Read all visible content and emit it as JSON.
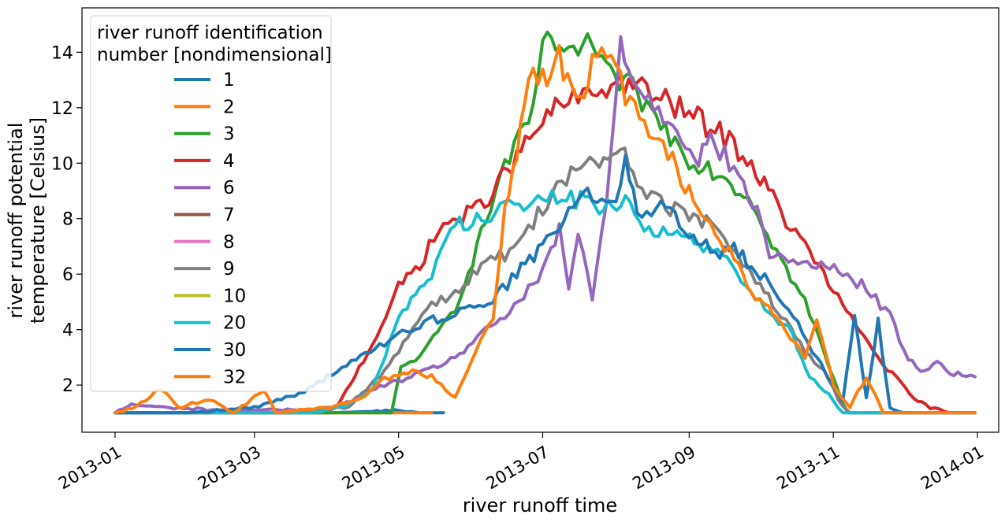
{
  "chart_data": {
    "type": "line",
    "title": "",
    "xlabel": "river runoff time",
    "ylabel_lines": [
      "river runoff potential",
      "temperature [Celsius]"
    ],
    "x_ticks": [
      "2013-01",
      "2013-03",
      "2013-05",
      "2013-07",
      "2013-09",
      "2013-11",
      "2014-01"
    ],
    "y_ticks": [
      "2",
      "4",
      "6",
      "8",
      "10",
      "12",
      "14"
    ],
    "xlim": [
      "2012-12-18",
      "2014-01-10"
    ],
    "ylim": [
      0.3,
      15.6
    ],
    "grid": false,
    "legend": {
      "title_lines": [
        "river runoff identification",
        "number [nondimensional]"
      ],
      "placement": "upper-left"
    },
    "series": [
      {
        "name": "1",
        "color": "#1f77b4",
        "points": [
          [
            "2013-01-01",
            1.0
          ],
          [
            "2013-01-20",
            1.0
          ],
          [
            "2013-02-01",
            1.0
          ],
          [
            "2013-03-01",
            1.0
          ],
          [
            "2013-04-01",
            1.0
          ],
          [
            "2013-04-20",
            1.05
          ],
          [
            "2013-05-01",
            1.1
          ],
          [
            "2013-05-10",
            1.0
          ],
          [
            "2013-05-20",
            1.0
          ]
        ]
      },
      {
        "name": "2",
        "color": "#ff7f0e",
        "points": [
          [
            "2013-01-01",
            1.0
          ],
          [
            "2013-02-01",
            1.0
          ],
          [
            "2013-03-01",
            1.0
          ],
          [
            "2013-04-01",
            1.0
          ],
          [
            "2013-05-01",
            1.0
          ],
          [
            "2013-05-15",
            1.0
          ]
        ]
      },
      {
        "name": "3",
        "color": "#2ca02c",
        "points": [
          [
            "2013-01-01",
            1.0
          ],
          [
            "2013-04-28",
            1.0
          ],
          [
            "2013-05-02",
            2.6
          ],
          [
            "2013-05-12",
            3.2
          ],
          [
            "2013-05-25",
            4.8
          ],
          [
            "2013-06-05",
            7.4
          ],
          [
            "2013-06-15",
            10.0
          ],
          [
            "2013-06-25",
            11.3
          ],
          [
            "2013-07-03",
            14.9
          ],
          [
            "2013-07-10",
            13.6
          ],
          [
            "2013-07-20",
            14.5
          ],
          [
            "2013-07-28",
            13.2
          ],
          [
            "2013-08-08",
            12.7
          ],
          [
            "2013-08-20",
            11.4
          ],
          [
            "2013-09-01",
            10.2
          ],
          [
            "2013-09-15",
            9.6
          ],
          [
            "2013-09-28",
            8.6
          ],
          [
            "2013-10-10",
            6.5
          ],
          [
            "2013-10-20",
            5.0
          ],
          [
            "2013-10-28",
            3.2
          ],
          [
            "2013-11-05",
            1.3
          ],
          [
            "2013-11-08",
            1.0
          ],
          [
            "2013-12-31",
            1.0
          ]
        ]
      },
      {
        "name": "4",
        "color": "#d62728",
        "points": [
          [
            "2013-01-01",
            1.0
          ],
          [
            "2013-03-20",
            1.0
          ],
          [
            "2013-04-05",
            1.2
          ],
          [
            "2013-04-20",
            3.5
          ],
          [
            "2013-05-01",
            5.5
          ],
          [
            "2013-05-10",
            6.4
          ],
          [
            "2013-05-20",
            7.8
          ],
          [
            "2013-06-01",
            8.2
          ],
          [
            "2013-06-10",
            9.0
          ],
          [
            "2013-06-20",
            10.2
          ],
          [
            "2013-07-01",
            11.5
          ],
          [
            "2013-07-10",
            12.2
          ],
          [
            "2013-07-20",
            12.4
          ],
          [
            "2013-08-01",
            12.9
          ],
          [
            "2013-08-10",
            12.8
          ],
          [
            "2013-08-20",
            12.3
          ],
          [
            "2013-09-01",
            11.8
          ],
          [
            "2013-09-10",
            11.3
          ],
          [
            "2013-09-20",
            10.7
          ],
          [
            "2013-10-01",
            9.5
          ],
          [
            "2013-10-10",
            8.2
          ],
          [
            "2013-10-20",
            7.0
          ],
          [
            "2013-10-28",
            6.0
          ],
          [
            "2013-11-05",
            4.8
          ],
          [
            "2013-11-12",
            4.0
          ],
          [
            "2013-11-20",
            3.0
          ],
          [
            "2013-11-28",
            2.2
          ],
          [
            "2013-12-05",
            1.5
          ],
          [
            "2013-12-12",
            1.2
          ],
          [
            "2013-12-20",
            1.0
          ],
          [
            "2013-12-31",
            1.0
          ]
        ]
      },
      {
        "name": "6",
        "color": "#9467bd",
        "points": [
          [
            "2013-01-01",
            1.0
          ],
          [
            "2013-01-08",
            1.3
          ],
          [
            "2013-01-20",
            1.2
          ],
          [
            "2013-02-15",
            1.1
          ],
          [
            "2013-03-15",
            1.1
          ],
          [
            "2013-04-05",
            1.2
          ],
          [
            "2013-04-25",
            2.0
          ],
          [
            "2013-05-10",
            2.4
          ],
          [
            "2013-05-25",
            3.0
          ],
          [
            "2013-06-05",
            3.8
          ],
          [
            "2013-06-15",
            4.5
          ],
          [
            "2013-06-25",
            5.4
          ],
          [
            "2013-07-01",
            6.0
          ],
          [
            "2013-07-08",
            7.6
          ],
          [
            "2013-07-12",
            5.5
          ],
          [
            "2013-07-16",
            7.5
          ],
          [
            "2013-07-22",
            5.1
          ],
          [
            "2013-07-28",
            8.5
          ],
          [
            "2013-08-03",
            14.5
          ],
          [
            "2013-08-08",
            13.0
          ],
          [
            "2013-08-15",
            12.3
          ],
          [
            "2013-08-25",
            11.5
          ],
          [
            "2013-09-05",
            10.2
          ],
          [
            "2013-09-10",
            10.9
          ],
          [
            "2013-09-18",
            10.0
          ],
          [
            "2013-09-28",
            8.6
          ],
          [
            "2013-10-05",
            6.8
          ],
          [
            "2013-10-15",
            6.4
          ],
          [
            "2013-10-25",
            6.4
          ],
          [
            "2013-11-05",
            6.0
          ],
          [
            "2013-11-15",
            5.5
          ],
          [
            "2013-11-25",
            4.5
          ],
          [
            "2013-12-01",
            3.2
          ],
          [
            "2013-12-08",
            2.5
          ],
          [
            "2013-12-15",
            2.8
          ],
          [
            "2013-12-22",
            2.4
          ],
          [
            "2013-12-31",
            2.3
          ]
        ]
      },
      {
        "name": "7",
        "color": "#8c564b",
        "points": []
      },
      {
        "name": "8",
        "color": "#e377c2",
        "points": []
      },
      {
        "name": "9",
        "color": "#7f7f7f",
        "points": [
          [
            "2013-01-01",
            1.0
          ],
          [
            "2013-03-20",
            1.0
          ],
          [
            "2013-04-10",
            1.2
          ],
          [
            "2013-04-25",
            2.5
          ],
          [
            "2013-05-05",
            3.8
          ],
          [
            "2013-05-15",
            5.0
          ],
          [
            "2013-05-25",
            5.3
          ],
          [
            "2013-06-05",
            6.3
          ],
          [
            "2013-06-15",
            6.7
          ],
          [
            "2013-06-25",
            7.6
          ],
          [
            "2013-07-05",
            9.0
          ],
          [
            "2013-07-15",
            9.8
          ],
          [
            "2013-07-25",
            10.0
          ],
          [
            "2013-08-03",
            10.5
          ],
          [
            "2013-08-10",
            9.4
          ],
          [
            "2013-08-20",
            8.5
          ],
          [
            "2013-09-01",
            8.2
          ],
          [
            "2013-09-10",
            7.7
          ],
          [
            "2013-09-20",
            7.0
          ],
          [
            "2013-10-01",
            5.5
          ],
          [
            "2013-10-10",
            4.5
          ],
          [
            "2013-10-20",
            3.2
          ],
          [
            "2013-10-28",
            2.5
          ],
          [
            "2013-11-05",
            1.2
          ],
          [
            "2013-11-08",
            1.0
          ],
          [
            "2013-12-31",
            1.0
          ]
        ]
      },
      {
        "name": "10",
        "color": "#bcbd22",
        "points": []
      },
      {
        "name": "20",
        "color": "#17becf",
        "points": [
          [
            "2013-01-01",
            1.0
          ],
          [
            "2013-03-25",
            1.0
          ],
          [
            "2013-04-10",
            1.3
          ],
          [
            "2013-04-20",
            1.8
          ],
          [
            "2013-05-01",
            4.5
          ],
          [
            "2013-05-10",
            5.5
          ],
          [
            "2013-05-15",
            6.0
          ],
          [
            "2013-05-25",
            7.8
          ],
          [
            "2013-06-05",
            8.0
          ],
          [
            "2013-06-15",
            8.6
          ],
          [
            "2013-06-25",
            8.4
          ],
          [
            "2013-07-05",
            8.8
          ],
          [
            "2013-07-15",
            8.7
          ],
          [
            "2013-07-25",
            8.5
          ],
          [
            "2013-08-05",
            8.5
          ],
          [
            "2013-08-15",
            7.6
          ],
          [
            "2013-08-25",
            7.6
          ],
          [
            "2013-09-05",
            7.0
          ],
          [
            "2013-09-15",
            6.7
          ],
          [
            "2013-09-25",
            5.5
          ],
          [
            "2013-10-05",
            4.7
          ],
          [
            "2013-10-15",
            3.8
          ],
          [
            "2013-10-22",
            2.3
          ],
          [
            "2013-10-30",
            1.7
          ],
          [
            "2013-11-05",
            1.0
          ],
          [
            "2013-12-31",
            1.0
          ]
        ]
      },
      {
        "name": "30",
        "color": "#1f77b4",
        "points": [
          [
            "2013-01-01",
            1.0
          ],
          [
            "2013-02-01",
            1.0
          ],
          [
            "2013-03-01",
            1.2
          ],
          [
            "2013-03-20",
            1.7
          ],
          [
            "2013-04-01",
            2.3
          ],
          [
            "2013-04-15",
            3.0
          ],
          [
            "2013-04-25",
            3.5
          ],
          [
            "2013-05-10",
            4.2
          ],
          [
            "2013-05-25",
            4.6
          ],
          [
            "2013-06-10",
            5.1
          ],
          [
            "2013-06-20",
            6.0
          ],
          [
            "2013-07-01",
            7.0
          ],
          [
            "2013-07-10",
            8.0
          ],
          [
            "2013-07-20",
            9.0
          ],
          [
            "2013-08-01",
            8.7
          ],
          [
            "2013-08-05",
            9.9
          ],
          [
            "2013-08-10",
            8.3
          ],
          [
            "2013-08-20",
            8.5
          ],
          [
            "2013-09-01",
            7.6
          ],
          [
            "2013-09-10",
            6.8
          ],
          [
            "2013-09-20",
            6.9
          ],
          [
            "2013-10-01",
            6.0
          ],
          [
            "2013-10-15",
            4.5
          ],
          [
            "2013-10-25",
            3.0
          ],
          [
            "2013-11-01",
            2.0
          ],
          [
            "2013-11-05",
            1.4
          ],
          [
            "2013-11-10",
            4.5
          ],
          [
            "2013-11-15",
            1.5
          ],
          [
            "2013-11-20",
            4.3
          ],
          [
            "2013-11-25",
            1.2
          ],
          [
            "2013-12-01",
            1.0
          ],
          [
            "2013-12-31",
            1.0
          ]
        ]
      },
      {
        "name": "32",
        "color": "#ff7f0e",
        "points": [
          [
            "2013-01-01",
            1.0
          ],
          [
            "2013-01-10",
            1.2
          ],
          [
            "2013-01-20",
            1.9
          ],
          [
            "2013-01-28",
            1.2
          ],
          [
            "2013-02-10",
            1.5
          ],
          [
            "2013-02-20",
            1.0
          ],
          [
            "2013-03-05",
            1.8
          ],
          [
            "2013-03-10",
            1.0
          ],
          [
            "2013-04-01",
            1.2
          ],
          [
            "2013-04-15",
            1.5
          ],
          [
            "2013-04-25",
            2.2
          ],
          [
            "2013-05-05",
            2.5
          ],
          [
            "2013-05-15",
            2.3
          ],
          [
            "2013-05-25",
            1.5
          ],
          [
            "2013-06-01",
            3.0
          ],
          [
            "2013-06-10",
            4.5
          ],
          [
            "2013-06-15",
            8.5
          ],
          [
            "2013-06-20",
            10.0
          ],
          [
            "2013-06-25",
            13.4
          ],
          [
            "2013-07-01",
            13.0
          ],
          [
            "2013-07-08",
            13.8
          ],
          [
            "2013-07-15",
            12.0
          ],
          [
            "2013-07-22",
            13.5
          ],
          [
            "2013-07-28",
            14.1
          ],
          [
            "2013-08-05",
            12.5
          ],
          [
            "2013-08-15",
            11.0
          ],
          [
            "2013-08-25",
            10.0
          ],
          [
            "2013-09-01",
            9.0
          ],
          [
            "2013-09-10",
            7.8
          ],
          [
            "2013-09-20",
            6.5
          ],
          [
            "2013-10-01",
            5.0
          ],
          [
            "2013-10-10",
            4.2
          ],
          [
            "2013-10-20",
            3.0
          ],
          [
            "2013-10-25",
            4.5
          ],
          [
            "2013-11-01",
            2.0
          ],
          [
            "2013-11-08",
            1.2
          ],
          [
            "2013-11-15",
            2.3
          ],
          [
            "2013-11-22",
            1.0
          ],
          [
            "2013-12-31",
            1.0
          ]
        ]
      }
    ]
  }
}
